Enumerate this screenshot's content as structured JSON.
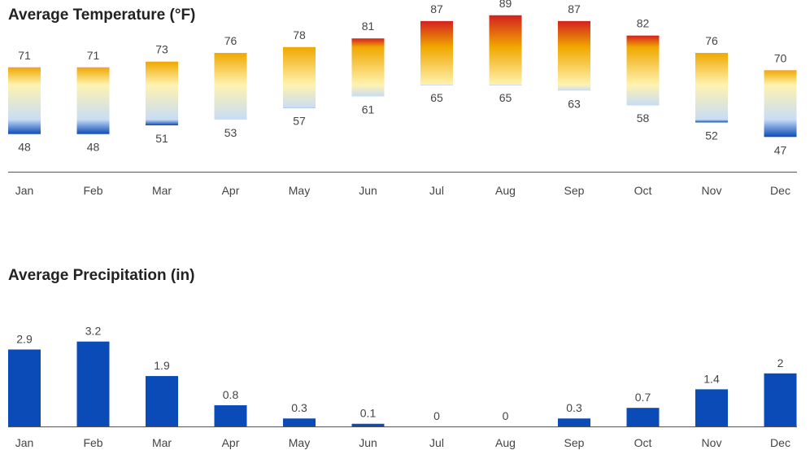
{
  "chart_data": [
    {
      "type": "bar",
      "title": "Average Temperature (°F)",
      "categories": [
        "Jan",
        "Feb",
        "Mar",
        "Apr",
        "May",
        "Jun",
        "Jul",
        "Aug",
        "Sep",
        "Oct",
        "Nov",
        "Dec"
      ],
      "series": [
        {
          "values": [
            71,
            71,
            73,
            76,
            78,
            81,
            87,
            89,
            87,
            82,
            76,
            70
          ]
        },
        {
          "values": [
            48,
            48,
            51,
            53,
            57,
            61,
            65,
            65,
            63,
            58,
            52,
            47
          ]
        }
      ],
      "colors": {
        "cold": "#0b4bb8",
        "cool": "#c8dcf5",
        "mild": "#fff3b0",
        "warm": "#f0a800",
        "hot": "#d42020",
        "axis": "#555555"
      }
    },
    {
      "type": "bar",
      "title": "Average Precipitation (in)",
      "categories": [
        "Jan",
        "Feb",
        "Mar",
        "Apr",
        "May",
        "Jun",
        "Jul",
        "Aug",
        "Sep",
        "Oct",
        "Nov",
        "Dec"
      ],
      "values": [
        2.9,
        3.2,
        1.9,
        0.8,
        0.3,
        0.1,
        0,
        0,
        0.3,
        0.7,
        1.4,
        2
      ],
      "colors": {
        "bar": "#0b4bb8",
        "axis": "#555555"
      }
    }
  ]
}
